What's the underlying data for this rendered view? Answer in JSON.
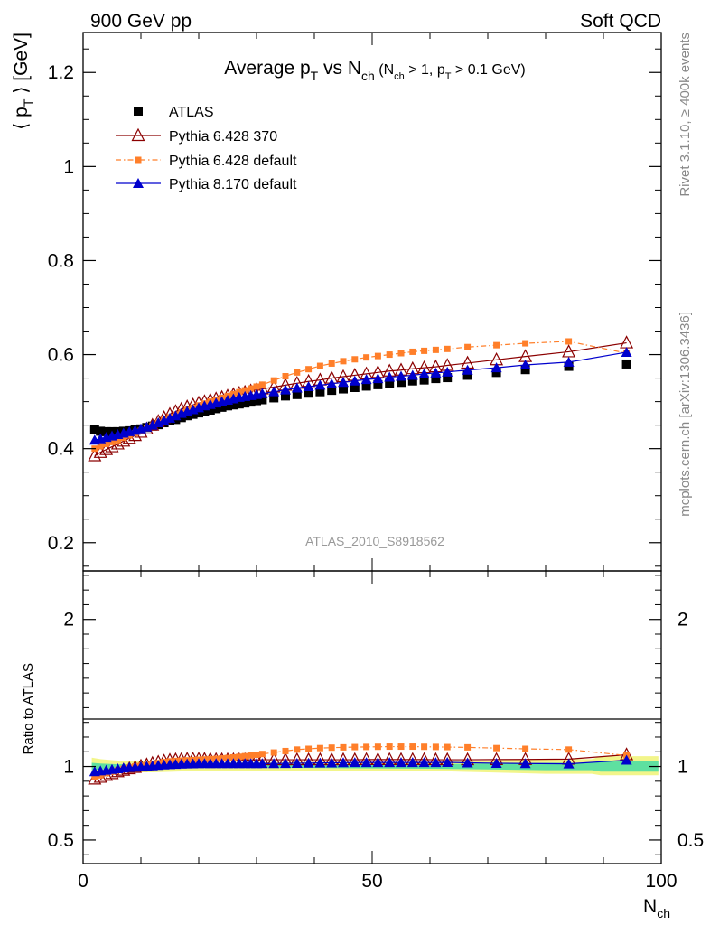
{
  "header": {
    "energy": "900 GeV pp",
    "category": "Soft QCD"
  },
  "side_labels": {
    "rivet": "Rivet 3.1.10, ≥ 400k events",
    "mcplots": "mcplots.cern.ch [arXiv:1306.3436]"
  },
  "chart_data": [
    {
      "type": "scatter",
      "panel": "main",
      "title": "Average p_T vs N_ch (N_ch > 1, p_T > 0.1 GeV)",
      "title_parts": {
        "main_a": "Average p",
        "main_sub1": "T",
        "main_b": " vs N",
        "main_sub2": "ch",
        "cond_a": " (N",
        "cond_sub1": "ch",
        "cond_b": " > 1, p",
        "cond_sub2": "T",
        "cond_c": " > 0.1 GeV)"
      },
      "ylabel": "⟨ p_T ⟩ [GeV]",
      "ylabel_parts": {
        "left": "⟨ p",
        "sub": "T",
        "right": " ⟩  [GeV]"
      },
      "xlabel": "N_ch",
      "xlabel_parts": {
        "main": "N",
        "sub": "ch"
      },
      "analysis_id": "ATLAS_2010_S8918562",
      "xlim": [
        0,
        100
      ],
      "ylim": [
        0.14,
        1.285
      ],
      "x_ticks": [
        0,
        50,
        100
      ],
      "y_ticks": [
        0.2,
        0.4,
        0.6,
        0.8,
        1,
        1.2
      ],
      "y_tick_labels": [
        "0.2",
        "0.4",
        "0.6",
        "0.8",
        "1",
        "1.2"
      ],
      "legend_position": "top-left",
      "series": [
        {
          "name": "ATLAS",
          "color": "#000000",
          "marker": "square",
          "line": "none",
          "x": [
            2,
            3,
            4,
            5,
            6,
            7,
            8,
            9,
            10,
            11,
            12,
            13,
            14,
            15,
            16,
            17,
            18,
            19,
            20,
            21,
            22,
            23,
            24,
            25,
            26,
            27,
            28,
            29,
            30,
            31,
            33,
            35,
            37,
            39,
            41,
            43,
            45,
            47,
            49,
            51,
            53,
            55,
            57,
            59,
            61,
            63,
            66.5,
            71.5,
            76.5,
            84,
            94
          ],
          "y": [
            0.44,
            0.437,
            0.436,
            0.436,
            0.436,
            0.437,
            0.438,
            0.44,
            0.442,
            0.445,
            0.448,
            0.451,
            0.455,
            0.459,
            0.462,
            0.466,
            0.47,
            0.473,
            0.476,
            0.479,
            0.482,
            0.485,
            0.488,
            0.491,
            0.493,
            0.495,
            0.497,
            0.499,
            0.502,
            0.504,
            0.508,
            0.512,
            0.515,
            0.518,
            0.521,
            0.524,
            0.527,
            0.53,
            0.533,
            0.536,
            0.539,
            0.541,
            0.544,
            0.546,
            0.549,
            0.551,
            0.556,
            0.562,
            0.568,
            0.575,
            0.58
          ]
        },
        {
          "name": "Pythia 6.428 370",
          "color": "#8b0000",
          "marker": "triangle-open",
          "line": "solid",
          "x": [
            2,
            3,
            4,
            5,
            6,
            7,
            8,
            9,
            10,
            11,
            12,
            13,
            14,
            15,
            16,
            17,
            18,
            19,
            20,
            21,
            22,
            23,
            24,
            25,
            26,
            27,
            28,
            29,
            30,
            31,
            33,
            35,
            37,
            39,
            41,
            43,
            45,
            47,
            49,
            51,
            53,
            55,
            57,
            59,
            61,
            63,
            66.5,
            71.5,
            76.5,
            84,
            94
          ],
          "y": [
            0.385,
            0.392,
            0.398,
            0.404,
            0.41,
            0.416,
            0.422,
            0.428,
            0.435,
            0.442,
            0.45,
            0.458,
            0.466,
            0.473,
            0.479,
            0.484,
            0.489,
            0.493,
            0.497,
            0.5,
            0.503,
            0.506,
            0.509,
            0.512,
            0.515,
            0.518,
            0.52,
            0.523,
            0.525,
            0.527,
            0.531,
            0.535,
            0.539,
            0.543,
            0.546,
            0.55,
            0.553,
            0.556,
            0.559,
            0.562,
            0.565,
            0.567,
            0.57,
            0.572,
            0.574,
            0.577,
            0.582,
            0.589,
            0.596,
            0.606,
            0.625
          ]
        },
        {
          "name": "Pythia 6.428 default",
          "color": "#ff7f2a",
          "marker": "square-small",
          "line": "dashdot",
          "x": [
            2,
            3,
            4,
            5,
            6,
            7,
            8,
            9,
            10,
            11,
            12,
            13,
            14,
            15,
            16,
            17,
            18,
            19,
            20,
            21,
            22,
            23,
            24,
            25,
            26,
            27,
            28,
            29,
            30,
            31,
            33,
            35,
            37,
            39,
            41,
            43,
            45,
            47,
            49,
            51,
            53,
            55,
            57,
            59,
            61,
            63,
            66.5,
            71.5,
            76.5,
            84,
            94
          ],
          "y": [
            0.4,
            0.405,
            0.41,
            0.414,
            0.418,
            0.423,
            0.428,
            0.433,
            0.438,
            0.443,
            0.449,
            0.455,
            0.461,
            0.467,
            0.472,
            0.477,
            0.482,
            0.487,
            0.492,
            0.496,
            0.5,
            0.504,
            0.508,
            0.512,
            0.516,
            0.52,
            0.524,
            0.528,
            0.532,
            0.536,
            0.545,
            0.554,
            0.562,
            0.569,
            0.576,
            0.581,
            0.586,
            0.59,
            0.594,
            0.597,
            0.6,
            0.603,
            0.606,
            0.608,
            0.61,
            0.612,
            0.616,
            0.62,
            0.624,
            0.628,
            0.603
          ]
        },
        {
          "name": "Pythia 8.170 default",
          "color": "#0000cd",
          "marker": "triangle",
          "line": "solid",
          "x": [
            2,
            3,
            4,
            5,
            6,
            7,
            8,
            9,
            10,
            11,
            12,
            13,
            14,
            15,
            16,
            17,
            18,
            19,
            20,
            21,
            22,
            23,
            24,
            25,
            26,
            27,
            28,
            29,
            30,
            31,
            33,
            35,
            37,
            39,
            41,
            43,
            45,
            47,
            49,
            51,
            53,
            55,
            57,
            59,
            61,
            63,
            66.5,
            71.5,
            76.5,
            84,
            94
          ],
          "y": [
            0.418,
            0.421,
            0.424,
            0.427,
            0.43,
            0.433,
            0.436,
            0.439,
            0.442,
            0.446,
            0.45,
            0.455,
            0.46,
            0.465,
            0.47,
            0.475,
            0.479,
            0.483,
            0.487,
            0.491,
            0.494,
            0.497,
            0.5,
            0.503,
            0.506,
            0.509,
            0.511,
            0.513,
            0.515,
            0.517,
            0.521,
            0.525,
            0.529,
            0.532,
            0.535,
            0.538,
            0.541,
            0.544,
            0.547,
            0.549,
            0.552,
            0.554,
            0.556,
            0.559,
            0.561,
            0.563,
            0.567,
            0.572,
            0.578,
            0.584,
            0.605
          ]
        }
      ]
    },
    {
      "type": "scatter",
      "panel": "ratio",
      "ylabel": "Ratio to ATLAS",
      "xlim": [
        0,
        100
      ],
      "ylim": [
        0.34,
        2.33
      ],
      "x_ticks": [
        0,
        50,
        100
      ],
      "x_tick_labels": [
        "0",
        "50",
        "100"
      ],
      "y_ticks": [
        0.5,
        1,
        2
      ],
      "y_tick_labels": [
        "0.5",
        "1",
        "2"
      ],
      "uncertainty_bands": [
        {
          "name": "outer",
          "color": "#f2f58a",
          "x": [
            1.5,
            3,
            6,
            12,
            20,
            40,
            60,
            70,
            80,
            88,
            89.5,
            99.5
          ],
          "lo": [
            0.94,
            0.95,
            0.96,
            0.96,
            0.97,
            0.97,
            0.97,
            0.96,
            0.95,
            0.95,
            0.94,
            0.94
          ],
          "hi": [
            1.06,
            1.05,
            1.04,
            1.04,
            1.03,
            1.03,
            1.03,
            1.04,
            1.05,
            1.05,
            1.07,
            1.07
          ]
        },
        {
          "name": "inner",
          "color": "#5ee0a0",
          "x": [
            1.5,
            3,
            6,
            12,
            20,
            40,
            60,
            70,
            80,
            88,
            89.5,
            99.5
          ],
          "lo": [
            0.975,
            0.98,
            0.985,
            0.985,
            0.99,
            0.99,
            0.985,
            0.98,
            0.975,
            0.975,
            0.965,
            0.965
          ],
          "hi": [
            1.025,
            1.02,
            1.015,
            1.015,
            1.01,
            1.01,
            1.015,
            1.02,
            1.025,
            1.025,
            1.035,
            1.035
          ]
        }
      ],
      "series": [
        {
          "name": "Pythia 6.428 370",
          "color": "#8b0000",
          "marker": "triangle-open",
          "line": "solid",
          "x": [
            2,
            3,
            4,
            5,
            6,
            7,
            8,
            9,
            10,
            11,
            12,
            13,
            14,
            15,
            16,
            17,
            18,
            19,
            20,
            21,
            22,
            23,
            24,
            25,
            26,
            27,
            28,
            29,
            30,
            31,
            33,
            35,
            37,
            39,
            41,
            43,
            45,
            47,
            49,
            51,
            53,
            55,
            57,
            59,
            61,
            63,
            66.5,
            71.5,
            76.5,
            84,
            94
          ],
          "y": [
            0.915,
            0.927,
            0.94,
            0.952,
            0.965,
            0.975,
            0.985,
            0.994,
            1.003,
            1.012,
            1.022,
            1.03,
            1.037,
            1.043,
            1.046,
            1.048,
            1.05,
            1.05,
            1.05,
            1.049,
            1.048,
            1.047,
            1.046,
            1.046,
            1.046,
            1.046,
            1.046,
            1.046,
            1.046,
            1.046,
            1.046,
            1.046,
            1.046,
            1.046,
            1.046,
            1.046,
            1.046,
            1.046,
            1.047,
            1.047,
            1.047,
            1.047,
            1.047,
            1.047,
            1.046,
            1.046,
            1.046,
            1.047,
            1.048,
            1.05,
            1.08
          ]
        },
        {
          "name": "Pythia 6.428 default",
          "color": "#ff7f2a",
          "marker": "square-small",
          "line": "dashdot",
          "x": [
            2,
            3,
            4,
            5,
            6,
            7,
            8,
            9,
            10,
            11,
            12,
            13,
            14,
            15,
            16,
            17,
            18,
            19,
            20,
            21,
            22,
            23,
            24,
            25,
            26,
            27,
            28,
            29,
            30,
            31,
            33,
            35,
            37,
            39,
            41,
            43,
            45,
            47,
            49,
            51,
            53,
            55,
            57,
            59,
            61,
            63,
            66.5,
            71.5,
            76.5,
            84,
            94
          ],
          "y": [
            0.93,
            0.94,
            0.955,
            0.965,
            0.975,
            0.985,
            0.993,
            1.0,
            1.005,
            1.01,
            1.017,
            1.023,
            1.03,
            1.035,
            1.038,
            1.04,
            1.042,
            1.044,
            1.046,
            1.048,
            1.05,
            1.052,
            1.055,
            1.058,
            1.062,
            1.066,
            1.07,
            1.075,
            1.08,
            1.085,
            1.095,
            1.105,
            1.115,
            1.12,
            1.125,
            1.128,
            1.13,
            1.132,
            1.133,
            1.134,
            1.135,
            1.135,
            1.135,
            1.134,
            1.133,
            1.132,
            1.13,
            1.125,
            1.12,
            1.115,
            1.075
          ]
        },
        {
          "name": "Pythia 8.170 default",
          "color": "#0000cd",
          "marker": "triangle",
          "line": "solid",
          "x": [
            2,
            3,
            4,
            5,
            6,
            7,
            8,
            9,
            10,
            11,
            12,
            13,
            14,
            15,
            16,
            17,
            18,
            19,
            20,
            21,
            22,
            23,
            24,
            25,
            26,
            27,
            28,
            29,
            30,
            31,
            33,
            35,
            37,
            39,
            41,
            43,
            45,
            47,
            49,
            51,
            53,
            55,
            57,
            59,
            61,
            63,
            66.5,
            71.5,
            76.5,
            84,
            94
          ],
          "y": [
            0.965,
            0.97,
            0.975,
            0.98,
            0.985,
            0.99,
            0.993,
            0.996,
            0.999,
            1.002,
            1.005,
            1.008,
            1.011,
            1.013,
            1.015,
            1.017,
            1.018,
            1.019,
            1.02,
            1.02,
            1.02,
            1.02,
            1.02,
            1.02,
            1.02,
            1.02,
            1.02,
            1.02,
            1.02,
            1.02,
            1.02,
            1.021,
            1.022,
            1.023,
            1.024,
            1.025,
            1.026,
            1.027,
            1.027,
            1.027,
            1.027,
            1.027,
            1.027,
            1.027,
            1.027,
            1.028,
            1.025,
            1.022,
            1.02,
            1.018,
            1.043
          ]
        }
      ]
    }
  ]
}
